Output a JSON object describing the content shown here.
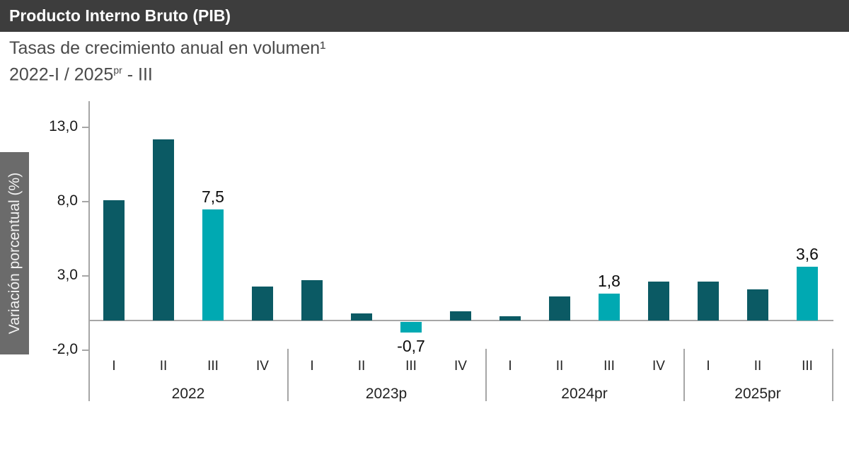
{
  "header": {
    "title": "Producto Interno Bruto (PIB)"
  },
  "subtitle": {
    "line1": "Tasas de crecimiento anual en volumen¹",
    "line2_prefix": "2022-I / 2025",
    "line2_sup": "pr",
    "line2_suffix": " - III"
  },
  "colors": {
    "title_bar_bg": "#3d3d3d",
    "title_text": "#ffffff",
    "subtitle_text": "#4a4a4a",
    "y_axis_band_bg": "#6b6b6b",
    "axis_line": "#a6a6a6",
    "bar_default": "#0b5a64",
    "bar_highlight": "#00a9b2"
  },
  "chart_data": {
    "type": "bar",
    "title": "Producto Interno Bruto (PIB)",
    "subtitle": "Tasas de crecimiento anual en volumen¹ 2022-I / 2025pr - III",
    "ylabel": "Variación porcentual (%)",
    "ylim": [
      -2.0,
      14.8
    ],
    "grid": false,
    "legend": false,
    "y_ticks": [
      {
        "label": "13,0",
        "value": 13.0
      },
      {
        "label": "8,0",
        "value": 8.0
      },
      {
        "label": "3,0",
        "value": 3.0
      },
      {
        "label": "-2,0",
        "value": -2.0
      }
    ],
    "colors": {
      "bar": "#0b5a64",
      "highlight": "#00a9b2"
    },
    "groups": [
      {
        "year": "2022",
        "bars": [
          {
            "q": "I",
            "value": 8.1,
            "highlight": false,
            "label": null
          },
          {
            "q": "II",
            "value": 12.2,
            "highlight": false,
            "label": null
          },
          {
            "q": "III",
            "value": 7.5,
            "highlight": true,
            "label": "7,5"
          },
          {
            "q": "IV",
            "value": 2.3,
            "highlight": false,
            "label": null
          }
        ]
      },
      {
        "year": "2023p",
        "bars": [
          {
            "q": "I",
            "value": 2.7,
            "highlight": false,
            "label": null
          },
          {
            "q": "II",
            "value": 0.5,
            "highlight": false,
            "label": null
          },
          {
            "q": "III",
            "value": -0.7,
            "highlight": true,
            "label": "-0,7"
          },
          {
            "q": "IV",
            "value": 0.6,
            "highlight": false,
            "label": null
          }
        ]
      },
      {
        "year": "2024pr",
        "bars": [
          {
            "q": "I",
            "value": 0.3,
            "highlight": false,
            "label": null
          },
          {
            "q": "II",
            "value": 1.6,
            "highlight": false,
            "label": null
          },
          {
            "q": "III",
            "value": 1.8,
            "highlight": true,
            "label": "1,8"
          },
          {
            "q": "IV",
            "value": 2.6,
            "highlight": false,
            "label": null
          }
        ]
      },
      {
        "year": "2025pr",
        "bars": [
          {
            "q": "I",
            "value": 2.6,
            "highlight": false,
            "label": null
          },
          {
            "q": "II",
            "value": 2.1,
            "highlight": false,
            "label": null
          },
          {
            "q": "III",
            "value": 3.6,
            "highlight": true,
            "label": "3,6"
          }
        ]
      }
    ]
  }
}
